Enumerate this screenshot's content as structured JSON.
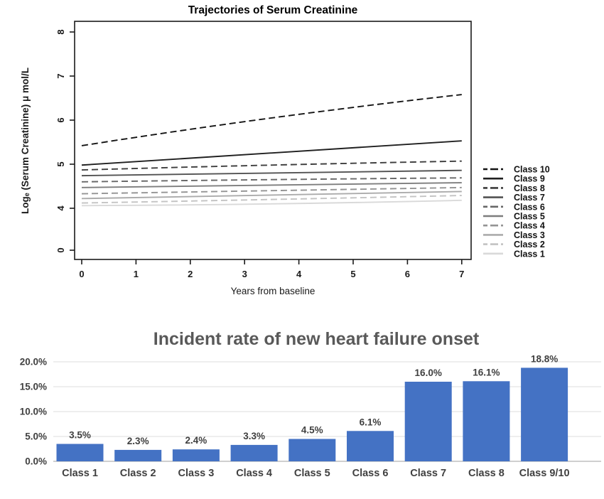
{
  "page": {
    "background": "#ffffff"
  },
  "chart_data": [
    {
      "type": "line",
      "title": "Trajectories of Serum Creatinine",
      "xlabel": "Years from baseline",
      "ylabel": "Logₑ (Serum Creatinine) μ mol/L",
      "x": [
        0,
        3.5,
        7
      ],
      "xticks": [
        "0",
        "1",
        "2",
        "3",
        "4",
        "5",
        "6",
        "7"
      ],
      "yticks": [
        "0",
        "4",
        "5",
        "6",
        "7",
        "8"
      ],
      "axis_note": "y axis broken between 0 and 4",
      "legend_position": "right",
      "grid": false,
      "series": [
        {
          "name": "Class 10",
          "values": [
            5.42,
            6.05,
            6.58
          ],
          "style": "dashed",
          "color": "#141414"
        },
        {
          "name": "Class 9",
          "values": [
            4.98,
            5.25,
            5.53
          ],
          "style": "solid",
          "color": "#1f1f1f"
        },
        {
          "name": "Class 8",
          "values": [
            4.87,
            4.98,
            5.07
          ],
          "style": "dashed",
          "color": "#3d3d3d"
        },
        {
          "name": "Class 7",
          "values": [
            4.74,
            4.8,
            4.86
          ],
          "style": "solid",
          "color": "#525252"
        },
        {
          "name": "Class 6",
          "values": [
            4.6,
            4.65,
            4.69
          ],
          "style": "dashed",
          "color": "#686868"
        },
        {
          "name": "Class 5",
          "values": [
            4.47,
            4.52,
            4.58
          ],
          "style": "solid",
          "color": "#7d7d7d"
        },
        {
          "name": "Class 4",
          "values": [
            4.33,
            4.4,
            4.47
          ],
          "style": "dashed",
          "color": "#949494"
        },
        {
          "name": "Class 3",
          "values": [
            4.22,
            4.3,
            4.38
          ],
          "style": "solid",
          "color": "#ababab"
        },
        {
          "name": "Class 2",
          "values": [
            4.12,
            4.2,
            4.29
          ],
          "style": "dashed",
          "color": "#c3c3c3"
        },
        {
          "name": "Class 1",
          "values": [
            4.06,
            4.1,
            4.18
          ],
          "style": "solid",
          "color": "#d9d9d9"
        }
      ]
    },
    {
      "type": "bar",
      "title": "Incident rate of new heart failure onset",
      "categories": [
        "Class 1",
        "Class 2",
        "Class 3",
        "Class 4",
        "Class 5",
        "Class 6",
        "Class 7",
        "Class 8",
        "Class 9/10"
      ],
      "values": [
        3.5,
        2.3,
        2.4,
        3.3,
        4.5,
        6.1,
        16.0,
        16.1,
        18.8
      ],
      "value_labels": [
        "3.5%",
        "2.3%",
        "2.4%",
        "3.3%",
        "4.5%",
        "6.1%",
        "16.0%",
        "16.1%",
        "18.8%"
      ],
      "yticks": [
        "0.0%",
        "5.0%",
        "10.0%",
        "15.0%",
        "20.0%"
      ],
      "ylim": [
        0,
        20
      ],
      "grid": true,
      "legend_position": "none",
      "colors": {
        "bar": "#4472C4",
        "title": "#595959",
        "axis_text": "#404040",
        "gridline": "#dcdcdc",
        "baseline": "#bfbfbf"
      }
    }
  ]
}
